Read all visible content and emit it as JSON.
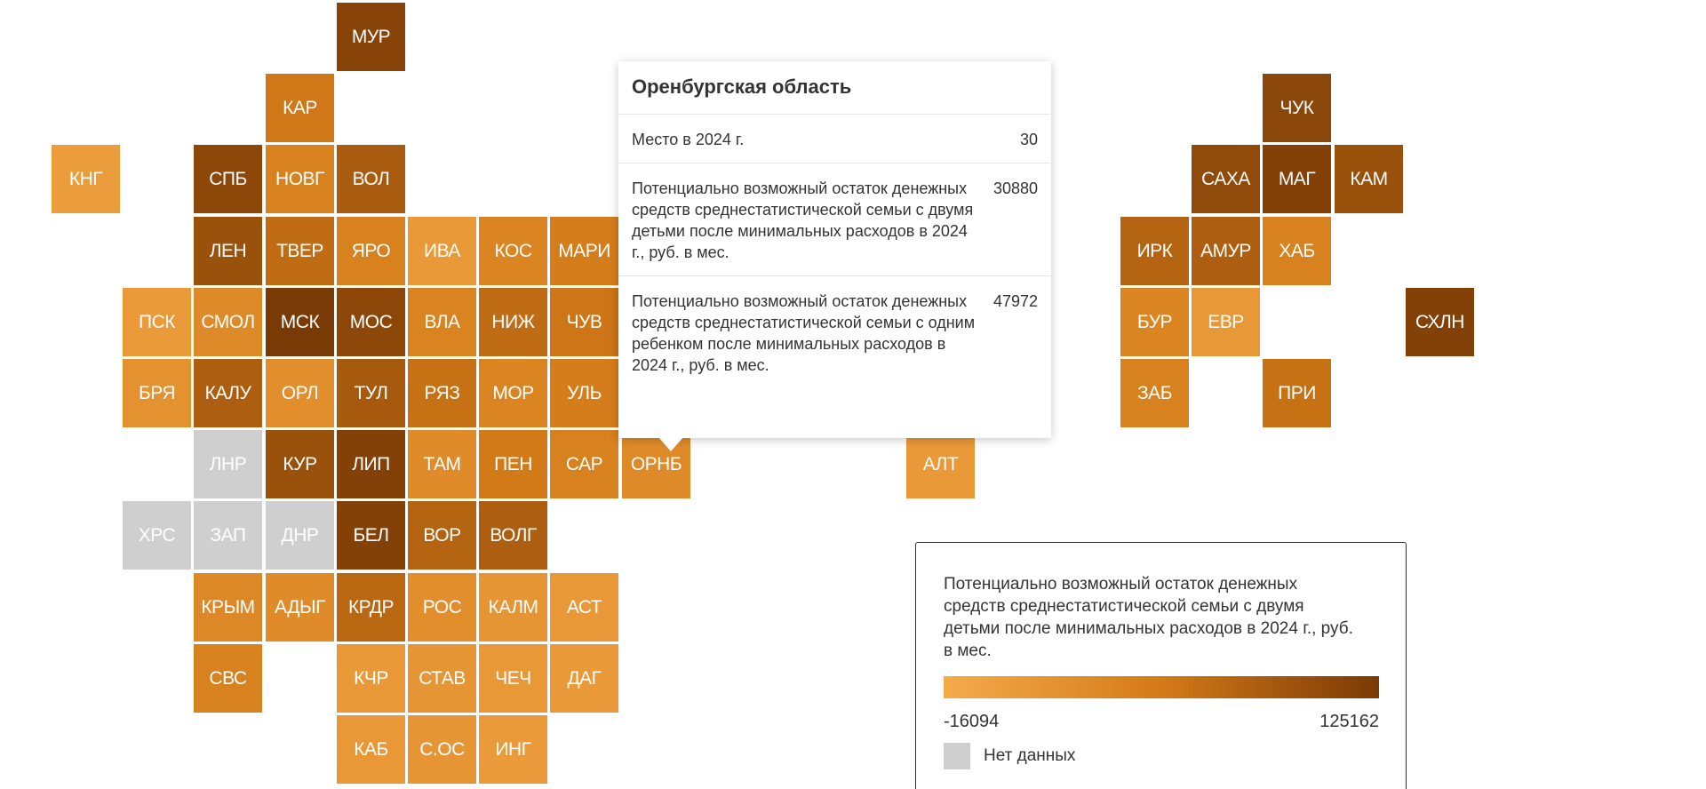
{
  "colors": {
    "nodata": "#cfcfcf",
    "gradient_low": "#f5ab4a",
    "gradient_mid": "#d47a18",
    "gradient_high": "#7a3a05",
    "text_dark": "#333333"
  },
  "regions": [
    {
      "abbr": "МУР",
      "row": 0,
      "col": 4,
      "value": 115000
    },
    {
      "abbr": "КАР",
      "row": 1,
      "col": 3,
      "value": 58000
    },
    {
      "abbr": "ЧУК",
      "row": 1,
      "col": 17,
      "value": 112000
    },
    {
      "abbr": "КНГ",
      "row": 2,
      "col": 0,
      "value": 5000
    },
    {
      "abbr": "СПБ",
      "row": 2,
      "col": 2,
      "value": 110000
    },
    {
      "abbr": "НОВГ",
      "row": 2,
      "col": 3,
      "value": 45000
    },
    {
      "abbr": "ВОЛ",
      "row": 2,
      "col": 4,
      "value": 88000
    },
    {
      "abbr": "САХА",
      "row": 2,
      "col": 16,
      "value": 108000
    },
    {
      "abbr": "МАГ",
      "row": 2,
      "col": 17,
      "value": 118000
    },
    {
      "abbr": "КАМ",
      "row": 2,
      "col": 18,
      "value": 100000
    },
    {
      "abbr": "ЛЕН",
      "row": 3,
      "col": 2,
      "value": 100000
    },
    {
      "abbr": "ТВЕР",
      "row": 3,
      "col": 3,
      "value": 70000
    },
    {
      "abbr": "ЯРО",
      "row": 3,
      "col": 4,
      "value": 45000
    },
    {
      "abbr": "ИВА",
      "row": 3,
      "col": 5,
      "value": 10000
    },
    {
      "abbr": "КОС",
      "row": 3,
      "col": 6,
      "value": 40000
    },
    {
      "abbr": "МАРИ",
      "row": 3,
      "col": 7,
      "value": 50000
    },
    {
      "abbr": "ИРК",
      "row": 3,
      "col": 15,
      "value": 80000
    },
    {
      "abbr": "АМУР",
      "row": 3,
      "col": 16,
      "value": 85000
    },
    {
      "abbr": "ХАБ",
      "row": 3,
      "col": 17,
      "value": 45000
    },
    {
      "abbr": "ПСК",
      "row": 4,
      "col": 1,
      "value": 8000
    },
    {
      "abbr": "СМОЛ",
      "row": 4,
      "col": 2,
      "value": 32000
    },
    {
      "abbr": "МСК",
      "row": 4,
      "col": 3,
      "value": 125162
    },
    {
      "abbr": "МОС",
      "row": 4,
      "col": 4,
      "value": 110000
    },
    {
      "abbr": "ВЛА",
      "row": 4,
      "col": 5,
      "value": 42000
    },
    {
      "abbr": "НИЖ",
      "row": 4,
      "col": 6,
      "value": 70000
    },
    {
      "abbr": "ЧУВ",
      "row": 4,
      "col": 7,
      "value": 60000
    },
    {
      "abbr": "БУР",
      "row": 4,
      "col": 15,
      "value": 40000
    },
    {
      "abbr": "ЕВР",
      "row": 4,
      "col": 16,
      "value": 12000
    },
    {
      "abbr": "СХЛН",
      "row": 4,
      "col": 19,
      "value": 118000
    },
    {
      "abbr": "БРЯ",
      "row": 5,
      "col": 1,
      "value": 20000
    },
    {
      "abbr": "КАЛУ",
      "row": 5,
      "col": 2,
      "value": 85000
    },
    {
      "abbr": "ОРЛ",
      "row": 5,
      "col": 3,
      "value": 25000
    },
    {
      "abbr": "ТУЛ",
      "row": 5,
      "col": 4,
      "value": 90000
    },
    {
      "abbr": "РЯЗ",
      "row": 5,
      "col": 5,
      "value": 65000
    },
    {
      "abbr": "МОР",
      "row": 5,
      "col": 6,
      "value": 40000
    },
    {
      "abbr": "УЛЬ",
      "row": 5,
      "col": 7,
      "value": 50000
    },
    {
      "abbr": "ЗАБ",
      "row": 5,
      "col": 15,
      "value": 45000
    },
    {
      "abbr": "ПРИ",
      "row": 5,
      "col": 17,
      "value": 65000
    },
    {
      "abbr": "ЛНР",
      "row": 6,
      "col": 2,
      "value": null
    },
    {
      "abbr": "КУР",
      "row": 6,
      "col": 3,
      "value": 100000
    },
    {
      "abbr": "ЛИП",
      "row": 6,
      "col": 4,
      "value": 118000
    },
    {
      "abbr": "ТАМ",
      "row": 6,
      "col": 5,
      "value": 30000
    },
    {
      "abbr": "ПЕН",
      "row": 6,
      "col": 6,
      "value": 55000
    },
    {
      "abbr": "САР",
      "row": 6,
      "col": 7,
      "value": 45000
    },
    {
      "abbr": "ОРНБ",
      "row": 6,
      "col": 8,
      "value": 30880
    },
    {
      "abbr": "АЛТ",
      "row": 6,
      "col": 12,
      "value": 10000
    },
    {
      "abbr": "ХРС",
      "row": 7,
      "col": 1,
      "value": null
    },
    {
      "abbr": "ЗАП",
      "row": 7,
      "col": 2,
      "value": null
    },
    {
      "abbr": "ДНР",
      "row": 7,
      "col": 3,
      "value": null
    },
    {
      "abbr": "БЕЛ",
      "row": 7,
      "col": 4,
      "value": 118000
    },
    {
      "abbr": "ВОР",
      "row": 7,
      "col": 5,
      "value": 80000
    },
    {
      "abbr": "ВОЛГ",
      "row": 7,
      "col": 6,
      "value": 85000
    },
    {
      "abbr": "КРЫМ",
      "row": 8,
      "col": 2,
      "value": 35000
    },
    {
      "abbr": "АДЫГ",
      "row": 8,
      "col": 3,
      "value": 30000
    },
    {
      "abbr": "КРДР",
      "row": 8,
      "col": 4,
      "value": 75000
    },
    {
      "abbr": "РОС",
      "row": 8,
      "col": 5,
      "value": 25000
    },
    {
      "abbr": "КАЛМ",
      "row": 8,
      "col": 6,
      "value": 15000
    },
    {
      "abbr": "АСТ",
      "row": 8,
      "col": 7,
      "value": 12000
    },
    {
      "abbr": "СВС",
      "row": 9,
      "col": 2,
      "value": 45000
    },
    {
      "abbr": "КЧР",
      "row": 9,
      "col": 4,
      "value": 10000
    },
    {
      "abbr": "СТАВ",
      "row": 9,
      "col": 5,
      "value": 15000
    },
    {
      "abbr": "ЧЕЧ",
      "row": 9,
      "col": 6,
      "value": 12000
    },
    {
      "abbr": "ДАГ",
      "row": 9,
      "col": 7,
      "value": 10000
    },
    {
      "abbr": "КАБ",
      "row": 10,
      "col": 4,
      "value": 12000
    },
    {
      "abbr": "С.ОС",
      "row": 10,
      "col": 5,
      "value": 15000
    },
    {
      "abbr": "ИНГ",
      "row": 10,
      "col": 6,
      "value": 8000
    }
  ],
  "tooltip": {
    "region": "Оренбургская область",
    "rows": [
      {
        "label": "Место в 2024 г.",
        "value": "30"
      },
      {
        "label": "Потенциально возможный остаток денежных средств среднестатистической семьи с двумя детьми после минимальных расходов в 2024 г., руб. в мес.",
        "value": "30880"
      },
      {
        "label": "Потенциально возможный остаток денежных средств среднестатистической семьи с одним ребенком после минимальных расходов в 2024 г., руб. в мес.",
        "value": "47972"
      }
    ]
  },
  "legend": {
    "title": "Потенциально возможный остаток денежных средств среднестатистической семьи с двумя детьми после минимальных расходов в 2024 г., руб. в мес.",
    "min": -16094,
    "max": 125162,
    "min_label": "-16094",
    "max_label": "125162",
    "nodata_label": "Нет данных"
  }
}
